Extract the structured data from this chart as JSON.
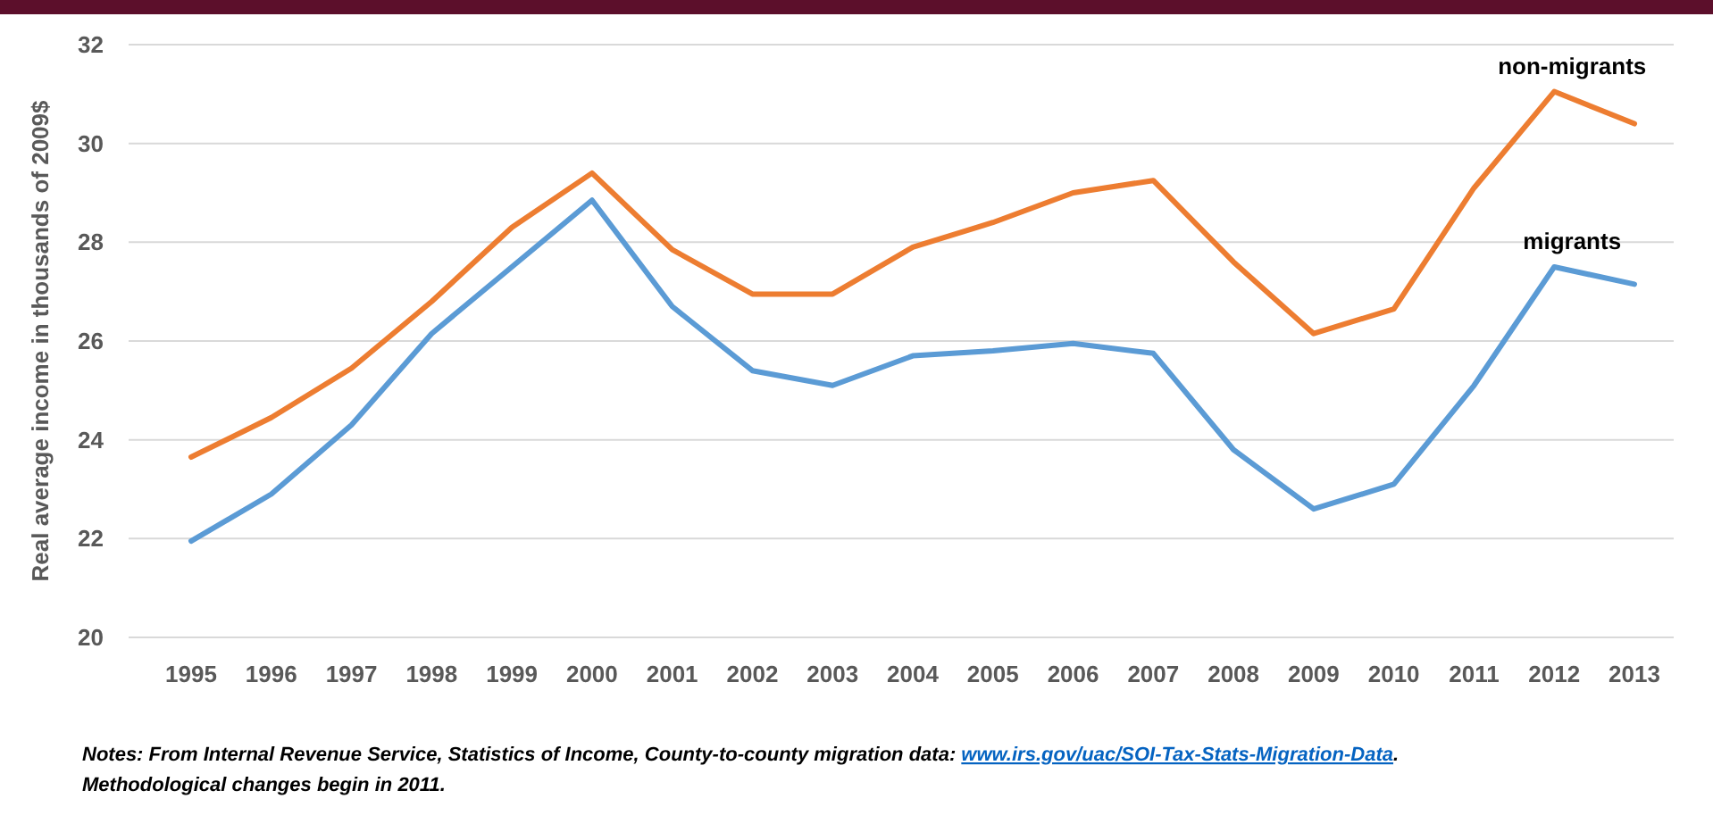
{
  "chart_data": {
    "type": "line",
    "ylabel": "Real average income in thousands of 2009$",
    "categories": [
      "1995",
      "1996",
      "1997",
      "1998",
      "1999",
      "2000",
      "2001",
      "2002",
      "2003",
      "2004",
      "2005",
      "2006",
      "2007",
      "2008",
      "2009",
      "2010",
      "2011",
      "2012",
      "2013"
    ],
    "series": [
      {
        "name": "non-migrants",
        "color": "#ed7d31",
        "values": [
          23.65,
          24.45,
          25.45,
          26.8,
          28.3,
          29.4,
          27.85,
          26.95,
          26.95,
          27.9,
          28.4,
          29.0,
          29.25,
          27.6,
          26.15,
          26.65,
          29.1,
          31.05,
          30.4
        ]
      },
      {
        "name": "migrants",
        "color": "#5b9bd5",
        "values": [
          21.95,
          22.9,
          24.3,
          26.15,
          27.5,
          28.85,
          26.7,
          25.4,
          25.1,
          25.7,
          25.8,
          25.95,
          25.75,
          23.8,
          22.6,
          23.1,
          25.1,
          27.5,
          27.15
        ]
      }
    ],
    "ylim": [
      20,
      32
    ],
    "yticks": [
      20,
      22,
      24,
      26,
      28,
      30,
      32
    ],
    "grid": "y",
    "marker": "none",
    "line_style": "solid",
    "annotations": [
      "Notes: From Internal Revenue Service, Statistics of Income, County-to-county migration data: www.irs.gov/uac/SOI-Tax-Stats-Migration-Data.",
      "Methodological changes begin in 2011."
    ]
  }
}
